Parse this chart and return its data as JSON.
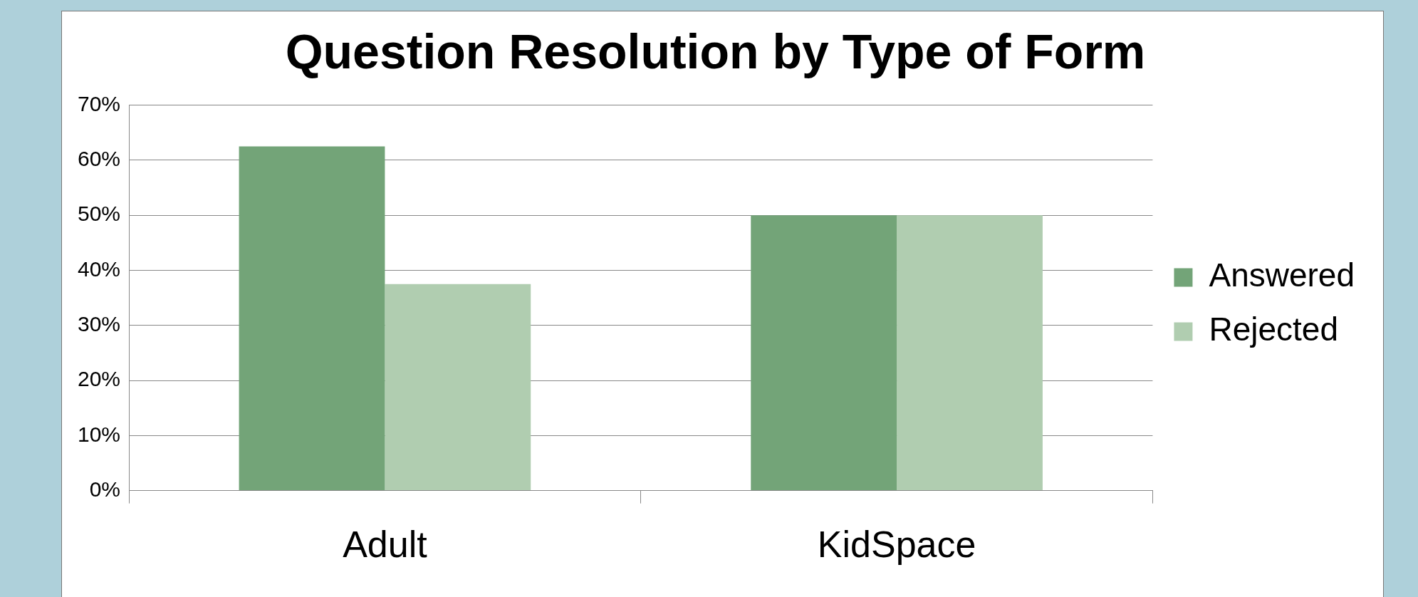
{
  "chart_data": {
    "type": "bar",
    "title": "Question Resolution by Type of Form",
    "categories": [
      "Adult",
      "KidSpace"
    ],
    "series": [
      {
        "name": "Answered",
        "color": "#73a478",
        "values": [
          62.5,
          50
        ]
      },
      {
        "name": "Rejected",
        "color": "#b0cdb0",
        "values": [
          37.5,
          50
        ]
      }
    ],
    "ylim": [
      0,
      70
    ],
    "yticks": [
      {
        "value": 0,
        "label": "0%"
      },
      {
        "value": 10,
        "label": "10%"
      },
      {
        "value": 20,
        "label": "20%"
      },
      {
        "value": 30,
        "label": "30%"
      },
      {
        "value": 40,
        "label": "40%"
      },
      {
        "value": 50,
        "label": "50%"
      },
      {
        "value": 60,
        "label": "60%"
      },
      {
        "value": 70,
        "label": "70%"
      }
    ],
    "grid": "y",
    "legend": "right"
  }
}
